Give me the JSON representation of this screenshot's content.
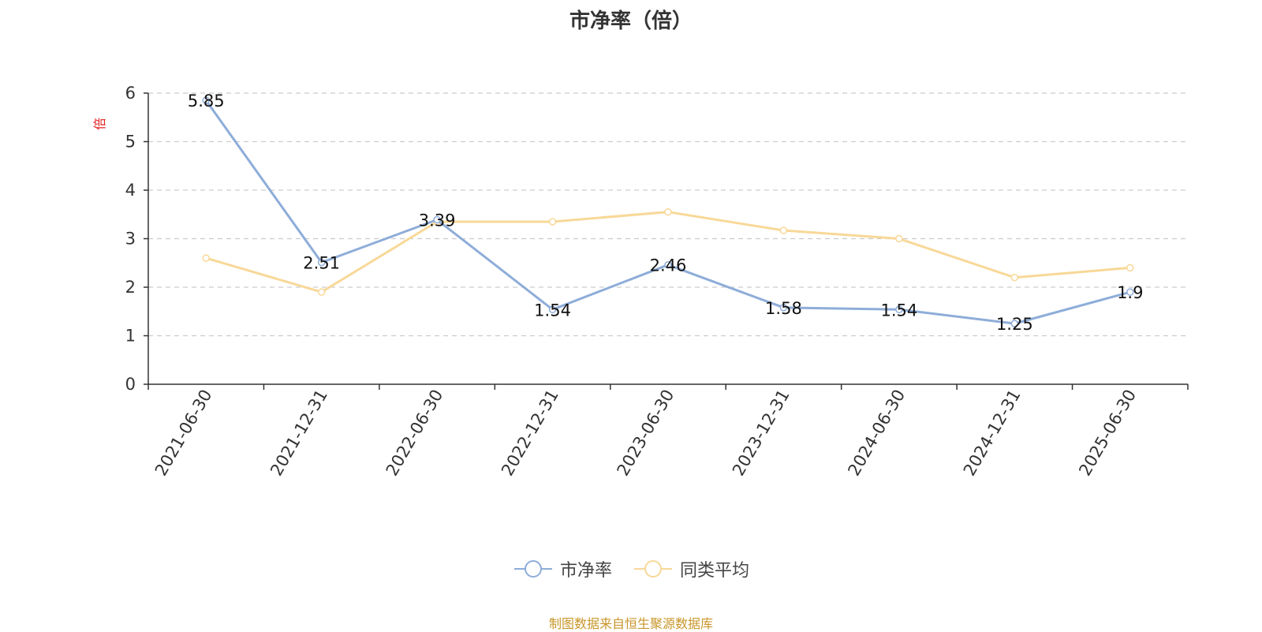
{
  "chart_data": {
    "type": "line",
    "title": "市净率（倍）",
    "ylabel": "倍",
    "xlabel": "",
    "categories": [
      "2021-06-30",
      "2021-12-31",
      "2022-06-30",
      "2022-12-31",
      "2023-06-30",
      "2023-12-31",
      "2024-06-30",
      "2024-12-31",
      "2025-06-30"
    ],
    "ylim": [
      0,
      6
    ],
    "yticks": [
      0,
      1,
      2,
      3,
      4,
      5,
      6
    ],
    "grid": true,
    "legend_position": "bottom",
    "series": [
      {
        "name": "市净率",
        "color": "#8eadd9",
        "values": [
          5.85,
          2.51,
          3.39,
          1.54,
          2.46,
          1.58,
          1.54,
          1.25,
          1.9
        ],
        "labels": [
          "5.85",
          "2.51",
          "3.39",
          "1.54",
          "2.46",
          "1.58",
          "1.54",
          "1.25",
          "1.9"
        ]
      },
      {
        "name": "同类平均",
        "color": "#f8d898",
        "values": [
          2.6,
          1.9,
          3.35,
          3.35,
          3.55,
          3.17,
          3.0,
          2.2,
          2.4
        ]
      }
    ]
  },
  "source_note": "制图数据来自恒生聚源数据库",
  "colors": {
    "axis_label": "#e02020",
    "text": "#333333"
  }
}
